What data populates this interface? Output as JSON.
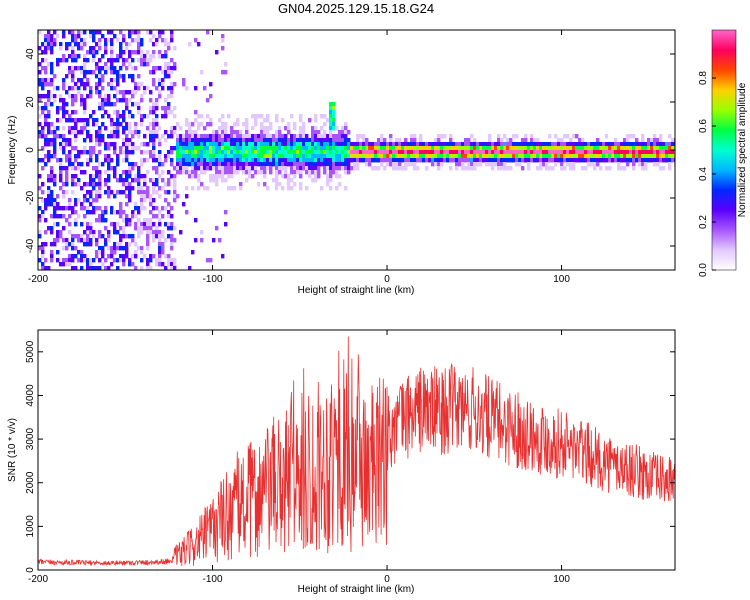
{
  "figure": {
    "title": "GN04.2025.129.15.18.G24"
  },
  "colors": {
    "snr_line": "#e83030",
    "colormap": [
      "#ffffff",
      "#e3c8ff",
      "#a855ff",
      "#5a00ff",
      "#0028ff",
      "#00b8ff",
      "#00ffd0",
      "#00ff40",
      "#9bff00",
      "#ffd000",
      "#ff4500",
      "#ff0060",
      "#ff66cc"
    ]
  },
  "chart_data": [
    {
      "type": "heatmap",
      "xlabel": "Height of straight line (km)",
      "ylabel": "Frequency (Hz)",
      "xlim": [
        -200,
        165
      ],
      "ylim": [
        -50,
        50
      ],
      "xticks": [
        -200,
        -100,
        0,
        100
      ],
      "yticks": [
        -40,
        -20,
        0,
        20,
        40
      ],
      "colorbar": {
        "label": "Normalized spectral amplitude",
        "range": [
          0,
          1
        ],
        "ticks": [
          "0.0",
          "0.2",
          "0.4",
          "0.6",
          "0.8"
        ]
      },
      "features": {
        "noise_region_x": [
          -200,
          -122
        ],
        "transition_x": -122,
        "dominant_frequency_hz": 0,
        "strong_band_start_x": -22,
        "spike_x": -32,
        "spike_freq_hz": 15
      },
      "grid": false
    },
    {
      "type": "line",
      "xlabel": "Height of straight line (km)",
      "ylabel": "SNR (10 * v/v)",
      "xlim": [
        -200,
        165
      ],
      "ylim": [
        0,
        5500
      ],
      "xticks": [
        -200,
        -100,
        0,
        100
      ],
      "yticks": [
        0,
        1000,
        2000,
        3000,
        4000,
        5000
      ],
      "series": [
        {
          "x": [
            -200,
            -180,
            -160,
            -140,
            -125,
            -115,
            -105,
            -95,
            -85,
            -75,
            -65,
            -55,
            -45,
            -35,
            -25,
            -18,
            -12,
            -5,
            0,
            10,
            20,
            30,
            40,
            50,
            60,
            70,
            80,
            90,
            100,
            110,
            120,
            130,
            140,
            150,
            160,
            165
          ],
          "values": [
            180,
            170,
            160,
            170,
            200,
            450,
            750,
            1150,
            1500,
            1650,
            1900,
            2100,
            2250,
            2450,
            2650,
            2700,
            2350,
            2300,
            3100,
            3500,
            3700,
            3650,
            3700,
            3650,
            3450,
            3300,
            3150,
            3000,
            2900,
            2750,
            2550,
            2400,
            2300,
            2150,
            2050,
            2050
          ]
        }
      ],
      "grid": false
    }
  ]
}
